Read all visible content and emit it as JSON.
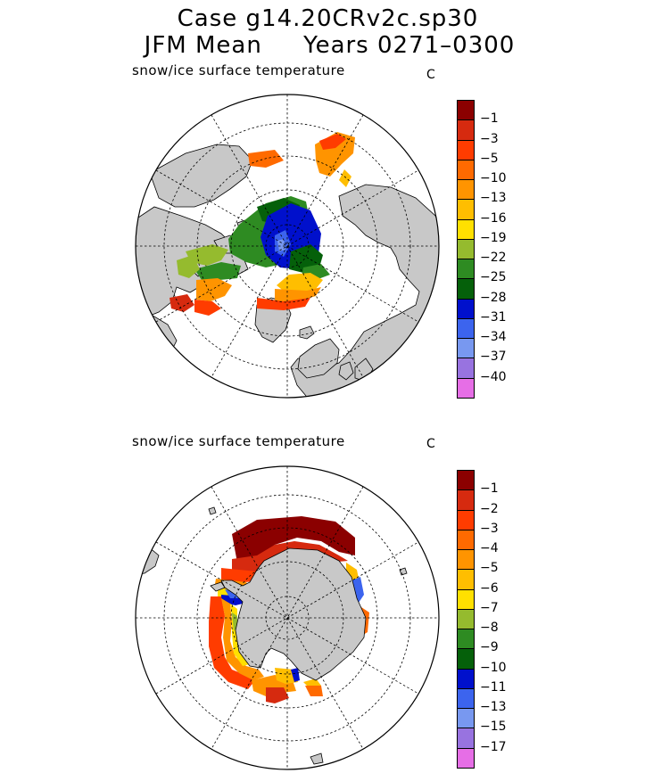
{
  "header": {
    "title_line1": "Case g14.20CRv2c.sp30",
    "title_line2": "JFM Mean     Years 0271–0300"
  },
  "panels": [
    {
      "id": "nh",
      "variable_label": "snow/ice surface temperature",
      "unit": "C",
      "colorbar": {
        "labels": [
          "−1",
          "−3",
          "−5",
          "−10",
          "−13",
          "−16",
          "−19",
          "−22",
          "−25",
          "−28",
          "−31",
          "−34",
          "−37",
          "−40"
        ],
        "colors": [
          "#8b0000",
          "#d62a0f",
          "#ff3c00",
          "#ff6a00",
          "#ff9400",
          "#ffbe00",
          "#ffe000",
          "#95bb2e",
          "#2e8b22",
          "#05600a",
          "#0010cc",
          "#3c64ee",
          "#7898f0",
          "#9873e0",
          "#e66ee6"
        ]
      }
    },
    {
      "id": "sh",
      "variable_label": "snow/ice surface temperature",
      "unit": "C",
      "colorbar": {
        "labels": [
          "−1",
          "−2",
          "−3",
          "−4",
          "−5",
          "−6",
          "−7",
          "−8",
          "−9",
          "−10",
          "−11",
          "−13",
          "−15",
          "−17"
        ],
        "colors": [
          "#8b0000",
          "#d62a0f",
          "#ff3c00",
          "#ff6a00",
          "#ff9400",
          "#ffbe00",
          "#ffe000",
          "#95bb2e",
          "#2e8b22",
          "#05600a",
          "#0010cc",
          "#3c64ee",
          "#7898f0",
          "#9873e0",
          "#e66ee6"
        ]
      }
    }
  ],
  "palette": {
    "land": "#c8c8c8",
    "frame": "#000000",
    "ocean": "#ffffff"
  }
}
